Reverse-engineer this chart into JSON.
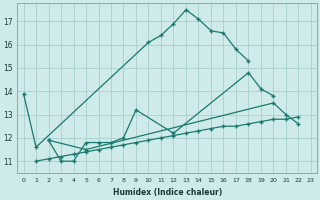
{
  "xlabel": "Humidex (Indice chaleur)",
  "background_color": "#ceeaea",
  "grid_color": "#aacece",
  "line_color": "#1a7a6e",
  "series": [
    {
      "x": [
        0,
        1,
        10,
        11,
        12,
        13,
        14,
        15,
        16,
        17,
        18
      ],
      "y": [
        13.9,
        11.6,
        16.1,
        16.4,
        16.9,
        17.5,
        17.1,
        16.6,
        16.5,
        15.8,
        15.3
      ]
    },
    {
      "x": [
        2,
        3,
        4,
        5,
        6,
        7,
        8,
        9,
        12,
        18,
        19,
        20
      ],
      "y": [
        11.9,
        11.0,
        11.0,
        11.8,
        11.8,
        11.8,
        12.0,
        13.2,
        12.2,
        14.8,
        14.1,
        13.8
      ]
    },
    {
      "x": [
        2,
        5,
        20,
        21,
        22
      ],
      "y": [
        11.9,
        11.5,
        13.5,
        13.0,
        12.6
      ]
    },
    {
      "x": [
        1,
        2,
        3,
        4,
        5,
        6,
        7,
        8,
        9,
        10,
        11,
        12,
        13,
        14,
        15,
        16,
        17,
        18,
        19,
        20,
        21,
        22
      ],
      "y": [
        11.0,
        11.1,
        11.2,
        11.3,
        11.4,
        11.5,
        11.6,
        11.7,
        11.8,
        11.9,
        12.0,
        12.1,
        12.2,
        12.3,
        12.4,
        12.5,
        12.5,
        12.6,
        12.7,
        12.8,
        12.8,
        12.9
      ]
    }
  ],
  "ylim": [
    10.5,
    17.8
  ],
  "xlim": [
    -0.5,
    23.5
  ],
  "yticks": [
    11,
    12,
    13,
    14,
    15,
    16,
    17
  ],
  "xticks": [
    0,
    1,
    2,
    3,
    4,
    5,
    6,
    7,
    8,
    9,
    10,
    11,
    12,
    13,
    14,
    15,
    16,
    17,
    18,
    19,
    20,
    21,
    22,
    23
  ]
}
